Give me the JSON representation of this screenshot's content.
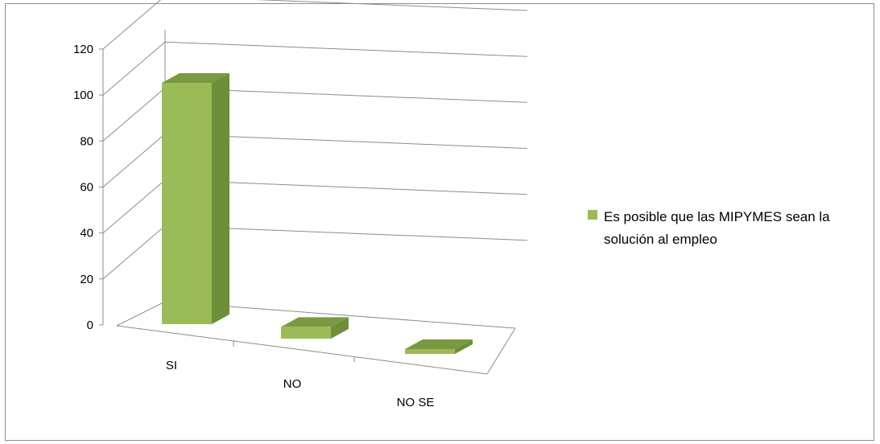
{
  "chart_data": {
    "type": "bar",
    "style": "3d-column",
    "categories": [
      "SI",
      "NO",
      "NO SE"
    ],
    "series": [
      {
        "name": "Es posible que las MIPYMES sean la solución al empleo",
        "values": [
          103,
          5,
          2
        ]
      }
    ],
    "ylim": [
      0,
      120
    ],
    "yticks": [
      0,
      20,
      40,
      60,
      80,
      100,
      120
    ],
    "grid": true,
    "legend_position": "right",
    "colors": {
      "bar_front": "#9bbb59",
      "bar_side": "#6e8f3a",
      "bar_top": "#7a9a41",
      "grid": "#8c8c8c"
    }
  }
}
